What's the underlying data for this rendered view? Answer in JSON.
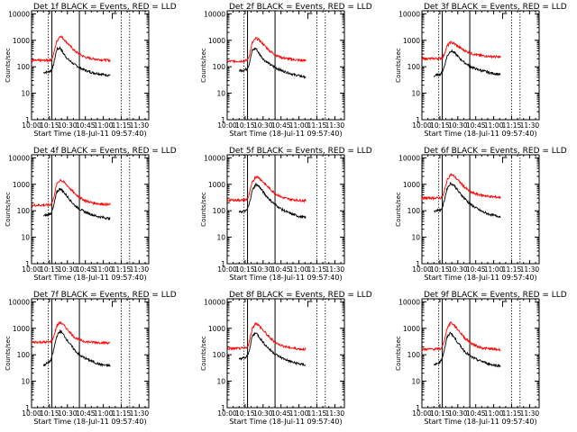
{
  "figure": {
    "x_axis_label": "Start Time (18-Jul-11 09:57:40)",
    "y_axis_label": "Counts/sec",
    "x_tick_labels": [
      "10:00",
      "10:15",
      "10:30",
      "10:45",
      "11:00",
      "11:15",
      "11:30"
    ],
    "y_tick_labels": [
      "1",
      "10",
      "100",
      "1000",
      "10000"
    ]
  },
  "colors": {
    "events": "#000000",
    "lld": "#ff0000"
  },
  "chart_data": [
    {
      "type": "line",
      "title": "Det 1f BLACK = Events, RED = LLD",
      "xlabel": "Start Time (18-Jul-11 09:57:40)",
      "ylabel": "Counts/sec",
      "xlim": [
        "10:00",
        "11:38"
      ],
      "ylim": [
        1,
        13000
      ],
      "yscale": "log",
      "grid": false,
      "markers": {
        "solid": [
          "10:17",
          "10:40"
        ],
        "dotted": [
          "10:14",
          "11:15",
          "11:22"
        ]
      },
      "series": [
        {
          "name": "BLACK = Events",
          "x": [
            "10:10",
            "10:14",
            "10:16",
            "10:18",
            "10:21",
            "10:24",
            "10:27",
            "10:31",
            "10:36",
            "10:41",
            "10:46",
            "10:51",
            "10:56",
            "11:01",
            "11:06"
          ],
          "values": [
            60,
            65,
            70,
            100,
            450,
            520,
            300,
            180,
            120,
            90,
            70,
            60,
            55,
            50,
            48
          ]
        },
        {
          "name": "RED = LLD",
          "x": [
            "10:00",
            "10:14",
            "10:16",
            "10:18",
            "10:21",
            "10:24",
            "10:27",
            "10:31",
            "10:36",
            "10:41",
            "10:46",
            "10:51",
            "10:56",
            "11:01",
            "11:06"
          ],
          "values": [
            170,
            175,
            180,
            250,
            900,
            1500,
            1100,
            700,
            400,
            280,
            220,
            200,
            190,
            180,
            175
          ]
        }
      ]
    },
    {
      "type": "line",
      "title": "Det 2f BLACK = Events, RED = LLD",
      "xlabel": "Start Time (18-Jul-11 09:57:40)",
      "ylabel": "Counts/sec",
      "xlim": [
        "10:00",
        "11:38"
      ],
      "ylim": [
        1,
        13000
      ],
      "yscale": "log",
      "grid": false,
      "markers": {
        "solid": [
          "10:17",
          "10:40"
        ],
        "dotted": [
          "10:14",
          "11:15",
          "11:22"
        ]
      },
      "series": [
        {
          "name": "BLACK = Events",
          "x": [
            "10:10",
            "10:14",
            "10:16",
            "10:18",
            "10:21",
            "10:24",
            "10:27",
            "10:31",
            "10:36",
            "10:41",
            "10:46",
            "10:51",
            "10:56",
            "11:01",
            "11:06"
          ],
          "values": [
            70,
            75,
            80,
            110,
            420,
            500,
            300,
            180,
            120,
            90,
            70,
            60,
            50,
            45,
            40
          ]
        },
        {
          "name": "RED = LLD",
          "x": [
            "10:00",
            "10:14",
            "10:16",
            "10:18",
            "10:21",
            "10:24",
            "10:27",
            "10:31",
            "10:36",
            "10:41",
            "10:46",
            "10:51",
            "10:56",
            "11:01",
            "11:06"
          ],
          "values": [
            160,
            165,
            170,
            220,
            800,
            1200,
            1000,
            650,
            380,
            270,
            220,
            200,
            185,
            175,
            170
          ]
        }
      ]
    },
    {
      "type": "line",
      "title": "Det 3f BLACK = Events, RED = LLD",
      "xlabel": "Start Time (18-Jul-11 09:57:40)",
      "ylabel": "Counts/sec",
      "xlim": [
        "10:00",
        "11:38"
      ],
      "ylim": [
        1,
        13000
      ],
      "yscale": "log",
      "grid": false,
      "markers": {
        "solid": [
          "10:17",
          "10:40"
        ],
        "dotted": [
          "10:14",
          "11:15",
          "11:22"
        ]
      },
      "series": [
        {
          "name": "BLACK = Events",
          "x": [
            "10:10",
            "10:14",
            "10:16",
            "10:18",
            "10:21",
            "10:24",
            "10:27",
            "10:31",
            "10:36",
            "10:41",
            "10:46",
            "10:51",
            "10:56",
            "11:01",
            "11:06"
          ],
          "values": [
            45,
            50,
            55,
            80,
            250,
            400,
            350,
            220,
            140,
            100,
            80,
            70,
            60,
            55,
            50
          ]
        },
        {
          "name": "RED = LLD",
          "x": [
            "10:00",
            "10:14",
            "10:16",
            "10:18",
            "10:21",
            "10:24",
            "10:27",
            "10:31",
            "10:36",
            "10:41",
            "10:46",
            "10:51",
            "10:56",
            "11:01",
            "11:06"
          ],
          "values": [
            200,
            205,
            210,
            250,
            600,
            850,
            750,
            550,
            400,
            320,
            280,
            260,
            250,
            240,
            230
          ]
        }
      ]
    },
    {
      "type": "line",
      "title": "Det 4f BLACK = Events, RED = LLD",
      "xlabel": "Start Time (18-Jul-11 09:57:40)",
      "ylabel": "Counts/sec",
      "xlim": [
        "10:00",
        "11:38"
      ],
      "ylim": [
        1,
        13000
      ],
      "yscale": "log",
      "grid": false,
      "markers": {
        "solid": [
          "10:17",
          "10:40"
        ],
        "dotted": [
          "10:14",
          "11:15",
          "11:22"
        ]
      },
      "series": [
        {
          "name": "BLACK = Events",
          "x": [
            "10:10",
            "10:14",
            "10:16",
            "10:18",
            "10:21",
            "10:24",
            "10:27",
            "10:31",
            "10:36",
            "10:41",
            "10:46",
            "10:51",
            "10:56",
            "11:01",
            "11:06"
          ],
          "values": [
            65,
            70,
            80,
            120,
            500,
            700,
            500,
            300,
            160,
            110,
            85,
            70,
            60,
            55,
            50
          ]
        },
        {
          "name": "RED = LLD",
          "x": [
            "10:00",
            "10:14",
            "10:16",
            "10:18",
            "10:21",
            "10:24",
            "10:27",
            "10:31",
            "10:36",
            "10:41",
            "10:46",
            "10:51",
            "10:56",
            "11:01",
            "11:06"
          ],
          "values": [
            160,
            165,
            170,
            250,
            1000,
            1500,
            1200,
            800,
            450,
            300,
            230,
            200,
            185,
            175,
            170
          ]
        }
      ]
    },
    {
      "type": "line",
      "title": "Det 5f BLACK = Events, RED = LLD",
      "xlabel": "Start Time (18-Jul-11 09:57:40)",
      "ylabel": "Counts/sec",
      "xlim": [
        "10:00",
        "11:38"
      ],
      "ylim": [
        1,
        13000
      ],
      "yscale": "log",
      "grid": false,
      "markers": {
        "solid": [
          "10:17",
          "10:40"
        ],
        "dotted": [
          "10:14",
          "11:15",
          "11:22"
        ]
      },
      "series": [
        {
          "name": "BLACK = Events",
          "x": [
            "10:10",
            "10:14",
            "10:16",
            "10:18",
            "10:21",
            "10:24",
            "10:27",
            "10:31",
            "10:36",
            "10:41",
            "10:46",
            "10:51",
            "10:56",
            "11:01",
            "11:06"
          ],
          "values": [
            90,
            95,
            100,
            150,
            600,
            1000,
            800,
            450,
            250,
            160,
            110,
            85,
            70,
            60,
            55
          ]
        },
        {
          "name": "RED = LLD",
          "x": [
            "10:00",
            "10:14",
            "10:16",
            "10:18",
            "10:21",
            "10:24",
            "10:27",
            "10:31",
            "10:36",
            "10:41",
            "10:46",
            "10:51",
            "10:56",
            "11:01",
            "11:06"
          ],
          "values": [
            250,
            255,
            260,
            350,
            1200,
            2000,
            1700,
            1100,
            650,
            420,
            320,
            280,
            260,
            245,
            240
          ]
        }
      ]
    },
    {
      "type": "line",
      "title": "Det 6f BLACK = Events, RED = LLD",
      "xlabel": "Start Time (18-Jul-11 09:57:40)",
      "ylabel": "Counts/sec",
      "xlim": [
        "10:00",
        "11:38"
      ],
      "ylim": [
        1,
        13000
      ],
      "yscale": "log",
      "grid": false,
      "markers": {
        "solid": [
          "10:17",
          "10:40"
        ],
        "dotted": [
          "10:14",
          "11:15",
          "11:22"
        ]
      },
      "series": [
        {
          "name": "BLACK = Events",
          "x": [
            "10:10",
            "10:14",
            "10:16",
            "10:18",
            "10:21",
            "10:24",
            "10:27",
            "10:31",
            "10:36",
            "10:41",
            "10:46",
            "10:51",
            "10:56",
            "11:01",
            "11:06"
          ],
          "values": [
            100,
            105,
            110,
            180,
            700,
            1100,
            900,
            500,
            280,
            170,
            120,
            90,
            75,
            65,
            60
          ]
        },
        {
          "name": "RED = LLD",
          "x": [
            "10:00",
            "10:14",
            "10:16",
            "10:18",
            "10:21",
            "10:24",
            "10:27",
            "10:31",
            "10:36",
            "10:41",
            "10:46",
            "10:51",
            "10:56",
            "11:01",
            "11:06"
          ],
          "values": [
            300,
            305,
            310,
            400,
            1400,
            2400,
            2000,
            1300,
            750,
            500,
            420,
            380,
            350,
            330,
            320
          ]
        }
      ]
    },
    {
      "type": "line",
      "title": "Det 7f BLACK = Events, RED = LLD",
      "xlabel": "Start Time (18-Jul-11 09:57:40)",
      "ylabel": "Counts/sec",
      "xlim": [
        "10:00",
        "11:38"
      ],
      "ylim": [
        1,
        13000
      ],
      "yscale": "log",
      "grid": false,
      "markers": {
        "solid": [
          "10:17",
          "10:40"
        ],
        "dotted": [
          "10:14",
          "11:15",
          "11:22"
        ]
      },
      "series": [
        {
          "name": "BLACK = Events",
          "x": [
            "10:10",
            "10:14",
            "10:16",
            "10:18",
            "10:21",
            "10:24",
            "10:27",
            "10:31",
            "10:36",
            "10:41",
            "10:46",
            "10:51",
            "10:56",
            "11:01",
            "11:06"
          ],
          "values": [
            40,
            50,
            60,
            120,
            500,
            800,
            550,
            300,
            150,
            90,
            70,
            55,
            45,
            40,
            38
          ]
        },
        {
          "name": "RED = LLD",
          "x": [
            "10:00",
            "10:14",
            "10:16",
            "10:18",
            "10:21",
            "10:24",
            "10:27",
            "10:31",
            "10:36",
            "10:41",
            "10:46",
            "10:51",
            "10:56",
            "11:01",
            "11:06"
          ],
          "values": [
            300,
            300,
            310,
            400,
            1200,
            1700,
            1300,
            800,
            450,
            350,
            310,
            300,
            290,
            285,
            280
          ]
        }
      ]
    },
    {
      "type": "line",
      "title": "Det 8f BLACK = Events, RED = LLD",
      "xlabel": "Start Time (18-Jul-11 09:57:40)",
      "ylabel": "Counts/sec",
      "xlim": [
        "10:00",
        "11:38"
      ],
      "ylim": [
        1,
        13000
      ],
      "yscale": "log",
      "grid": false,
      "markers": {
        "solid": [
          "10:17",
          "10:40"
        ],
        "dotted": [
          "10:14",
          "11:15",
          "11:22"
        ]
      },
      "series": [
        {
          "name": "BLACK = Events",
          "x": [
            "10:10",
            "10:14",
            "10:16",
            "10:18",
            "10:21",
            "10:24",
            "10:27",
            "10:31",
            "10:36",
            "10:41",
            "10:46",
            "10:51",
            "10:56",
            "11:01",
            "11:06"
          ],
          "values": [
            70,
            75,
            80,
            120,
            500,
            700,
            450,
            260,
            150,
            100,
            75,
            60,
            50,
            45,
            40
          ]
        },
        {
          "name": "RED = LLD",
          "x": [
            "10:00",
            "10:14",
            "10:16",
            "10:18",
            "10:21",
            "10:24",
            "10:27",
            "10:31",
            "10:36",
            "10:41",
            "10:46",
            "10:51",
            "10:56",
            "11:01",
            "11:06"
          ],
          "values": [
            170,
            175,
            180,
            250,
            1000,
            1600,
            1200,
            750,
            420,
            280,
            220,
            190,
            175,
            165,
            160
          ]
        }
      ]
    },
    {
      "type": "line",
      "title": "Det 9f BLACK = Events, RED = LLD",
      "xlabel": "Start Time (18-Jul-11 09:57:40)",
      "ylabel": "Counts/sec",
      "xlim": [
        "10:00",
        "11:38"
      ],
      "ylim": [
        1,
        13000
      ],
      "yscale": "log",
      "grid": false,
      "markers": {
        "solid": [
          "10:17",
          "10:40"
        ],
        "dotted": [
          "10:14",
          "11:15",
          "11:22"
        ]
      },
      "series": [
        {
          "name": "BLACK = Events",
          "x": [
            "10:10",
            "10:14",
            "10:16",
            "10:18",
            "10:21",
            "10:24",
            "10:27",
            "10:31",
            "10:36",
            "10:41",
            "10:46",
            "10:51",
            "10:56",
            "11:01",
            "11:06"
          ],
          "values": [
            40,
            50,
            60,
            110,
            450,
            700,
            450,
            250,
            130,
            85,
            65,
            55,
            45,
            40,
            38
          ]
        },
        {
          "name": "RED = LLD",
          "x": [
            "10:00",
            "10:14",
            "10:16",
            "10:18",
            "10:21",
            "10:24",
            "10:27",
            "10:31",
            "10:36",
            "10:41",
            "10:46",
            "10:51",
            "10:56",
            "11:01",
            "11:06"
          ],
          "values": [
            160,
            165,
            170,
            250,
            1000,
            1700,
            1300,
            800,
            420,
            280,
            210,
            180,
            170,
            160,
            155
          ]
        }
      ]
    }
  ]
}
